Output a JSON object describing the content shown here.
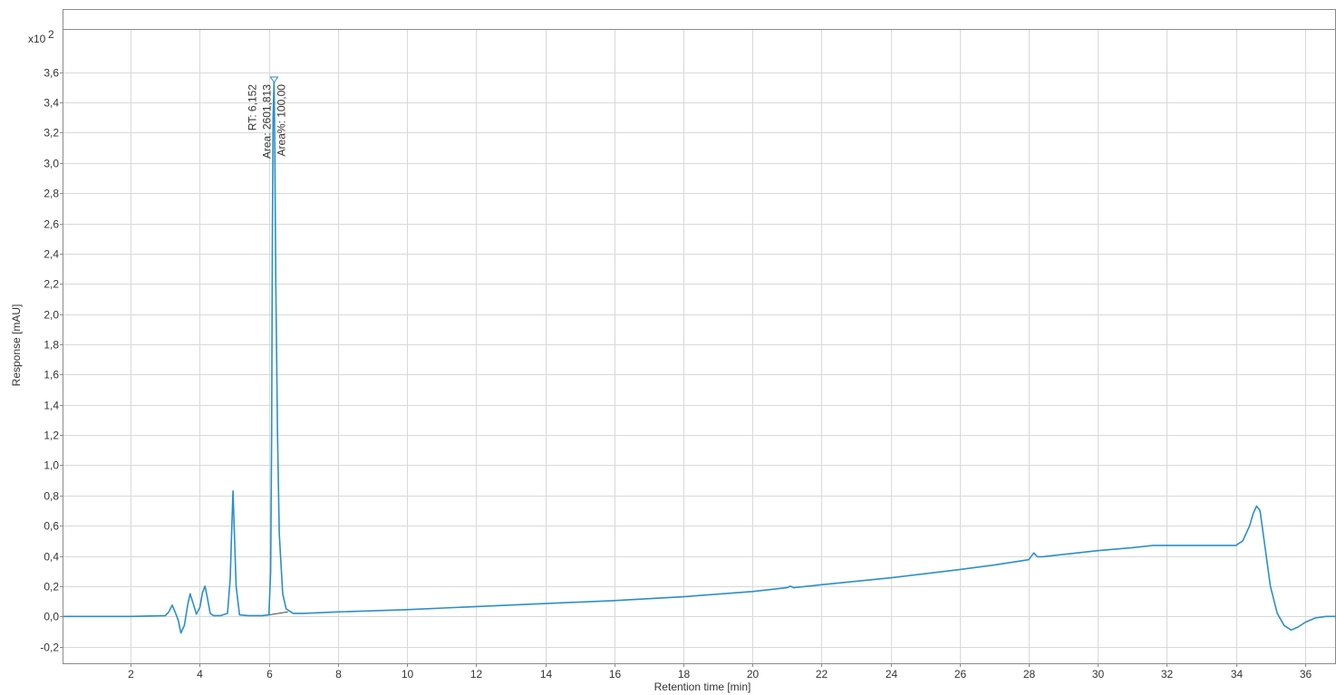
{
  "chart_data": {
    "type": "line",
    "xlabel": "Retention time [min]",
    "ylabel": "Response [mAU]",
    "y_multiplier_label": "x10",
    "y_multiplier_exponent": "2",
    "xlim": [
      0.05,
      36.9
    ],
    "ylim": [
      -0.31,
      3.88
    ],
    "x_ticks": [
      2,
      4,
      6,
      8,
      10,
      12,
      14,
      16,
      18,
      20,
      22,
      24,
      26,
      28,
      30,
      32,
      34,
      36
    ],
    "y_ticks": [
      -0.2,
      0.0,
      0.2,
      0.4,
      0.6,
      0.8,
      1.0,
      1.2,
      1.4,
      1.6,
      1.8,
      2.0,
      2.2,
      2.4,
      2.6,
      2.8,
      3.0,
      3.2,
      3.4,
      3.6
    ],
    "decimal_separator": ",",
    "grid": true,
    "line_color": "#2a8fc9",
    "series": [
      {
        "x": [
          0.05,
          1.0,
          2.0,
          3.0,
          3.1,
          3.2,
          3.3,
          3.38,
          3.45,
          3.55,
          3.65,
          3.72,
          3.8,
          3.9,
          4.0,
          4.08,
          4.15,
          4.22,
          4.3,
          4.4,
          4.6,
          4.8,
          4.88,
          4.93,
          4.96,
          5.0,
          5.05,
          5.15,
          5.4,
          5.8,
          6.0,
          6.05,
          6.08,
          6.1,
          6.12,
          6.15,
          6.17,
          6.2,
          6.25,
          6.3,
          6.4,
          6.5,
          6.7,
          7.0,
          8.0,
          10.0,
          12.0,
          14.0,
          16.0,
          18.0,
          20.0,
          21.0,
          21.1,
          21.2,
          22.0,
          24.0,
          26.0,
          27.0,
          28.0,
          28.1,
          28.15,
          28.25,
          28.4,
          30.0,
          31.0,
          31.6,
          32.0,
          33.0,
          34.0,
          34.2,
          34.4,
          34.5,
          34.6,
          34.7,
          34.85,
          35.0,
          35.2,
          35.4,
          35.6,
          35.8,
          36.0,
          36.3,
          36.6,
          36.9
        ],
        "y": [
          0.0,
          0.0,
          0.0,
          0.005,
          0.03,
          0.075,
          0.02,
          -0.03,
          -0.11,
          -0.06,
          0.08,
          0.15,
          0.09,
          0.015,
          0.06,
          0.16,
          0.2,
          0.12,
          0.02,
          0.005,
          0.005,
          0.02,
          0.25,
          0.62,
          0.83,
          0.55,
          0.2,
          0.01,
          0.005,
          0.005,
          0.01,
          0.3,
          1.2,
          2.5,
          3.3,
          3.55,
          3.1,
          2.2,
          1.2,
          0.55,
          0.15,
          0.05,
          0.02,
          0.02,
          0.03,
          0.045,
          0.065,
          0.085,
          0.105,
          0.13,
          0.165,
          0.19,
          0.2,
          0.19,
          0.21,
          0.255,
          0.31,
          0.34,
          0.375,
          0.405,
          0.42,
          0.395,
          0.395,
          0.435,
          0.455,
          0.47,
          0.47,
          0.47,
          0.47,
          0.5,
          0.6,
          0.68,
          0.73,
          0.7,
          0.45,
          0.2,
          0.02,
          -0.06,
          -0.09,
          -0.07,
          -0.04,
          -0.01,
          0.0,
          0.0
        ]
      }
    ],
    "annotations": [
      {
        "lines": [
          "RT: 6,152",
          "Area: 2601,813",
          "Area%: 100,00"
        ],
        "x": 6.152,
        "y": 3.55
      }
    ]
  }
}
